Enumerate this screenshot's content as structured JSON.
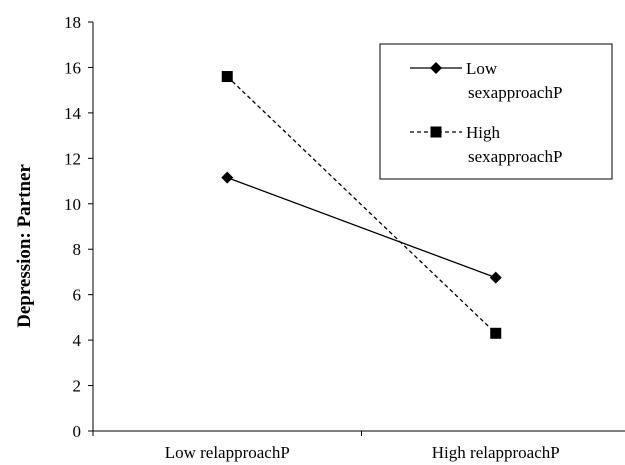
{
  "chart_data": {
    "type": "line",
    "title": "",
    "xlabel": "",
    "ylabel": "Depression: Partner",
    "categories": [
      "Low relapproachP",
      "High relapproachP"
    ],
    "ylim": [
      0,
      18
    ],
    "yticks": [
      0,
      2,
      4,
      6,
      8,
      10,
      12,
      14,
      16,
      18
    ],
    "grid": false,
    "legend_position": "top-right",
    "series": [
      {
        "name": "Low sexapproachP",
        "name_lines": [
          "Low",
          "sexapproachP"
        ],
        "values": [
          11.15,
          6.75
        ],
        "line_style": "solid",
        "marker": "diamond",
        "color": "#000000"
      },
      {
        "name": "High sexapproachP",
        "name_lines": [
          "High",
          "sexapproachP"
        ],
        "values": [
          15.6,
          4.3
        ],
        "line_style": "dashed",
        "marker": "square",
        "color": "#000000"
      }
    ]
  }
}
